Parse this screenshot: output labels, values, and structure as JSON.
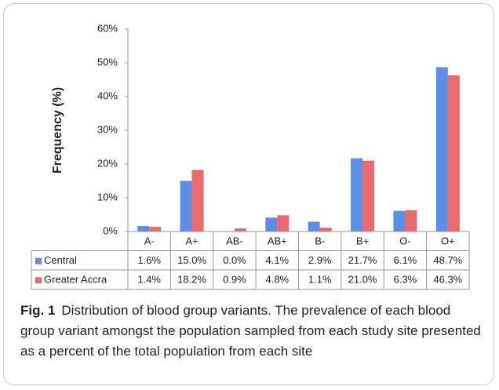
{
  "chart_data": {
    "type": "bar",
    "ylabel": "Frequency (%)",
    "categories": [
      "A-",
      "A+",
      "AB-",
      "AB+",
      "B-",
      "B+",
      "O-",
      "O+"
    ],
    "series": [
      {
        "name": "Central",
        "color": "#5b8ee6",
        "values": [
          1.6,
          15.0,
          0.0,
          4.1,
          2.9,
          21.7,
          6.1,
          48.7
        ],
        "value_labels": [
          "1.6%",
          "15.0%",
          "0.0%",
          "4.1%",
          "2.9%",
          "21.7%",
          "6.1%",
          "48.7%"
        ]
      },
      {
        "name": "Greater Accra",
        "color": "#e86a6a",
        "values": [
          1.4,
          18.2,
          0.9,
          4.8,
          1.1,
          21.0,
          6.3,
          46.3
        ],
        "value_labels": [
          "1.4%",
          "18.2%",
          "0.9%",
          "4.8%",
          "1.1%",
          "21.0%",
          "6.3%",
          "46.3%"
        ]
      }
    ],
    "ylim": [
      0,
      60
    ],
    "yticks": [
      {
        "value": 0,
        "label": "0%"
      },
      {
        "value": 10,
        "label": "10%"
      },
      {
        "value": 20,
        "label": "20%"
      },
      {
        "value": 30,
        "label": "30%"
      },
      {
        "value": 40,
        "label": "40%"
      },
      {
        "value": 50,
        "label": "50%"
      },
      {
        "value": 60,
        "label": "60%"
      }
    ],
    "grid": false,
    "caption_label": "Fig. 1",
    "caption": "Distribution of blood group variants. The prevalence of each blood group variant amongst the population sampled from each study site presented as a percent of the total population from each site"
  }
}
